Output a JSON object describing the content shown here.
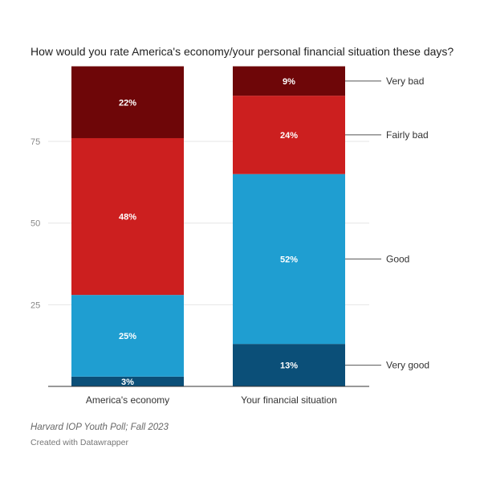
{
  "chart_data": {
    "type": "bar",
    "stacked": true,
    "title": "How would you rate America's economy/your personal financial situation these days?",
    "categories": [
      "America's economy",
      "Your financial situation"
    ],
    "series": [
      {
        "name": "Very good",
        "values": [
          3,
          13
        ],
        "value_labels": [
          "3%",
          "13%"
        ],
        "color": "#0b4f78"
      },
      {
        "name": "Good",
        "values": [
          25,
          52
        ],
        "value_labels": [
          "25%",
          "52%"
        ],
        "color": "#1f9ed1"
      },
      {
        "name": "Fairly bad",
        "values": [
          48,
          24
        ],
        "value_labels": [
          "48%",
          "24%"
        ],
        "color": "#cc1f1f"
      },
      {
        "name": "Very bad",
        "values": [
          22,
          9
        ],
        "value_labels": [
          "22%",
          "9%"
        ],
        "color": "#6e0608"
      }
    ],
    "y_ticks": [
      25,
      50,
      75
    ],
    "ylim": [
      0,
      98
    ],
    "grid": true,
    "legend": "right, inline labels"
  },
  "footer": {
    "source": "Harvard IOP Youth Poll; Fall 2023",
    "credit": "Created with Datawrapper"
  }
}
